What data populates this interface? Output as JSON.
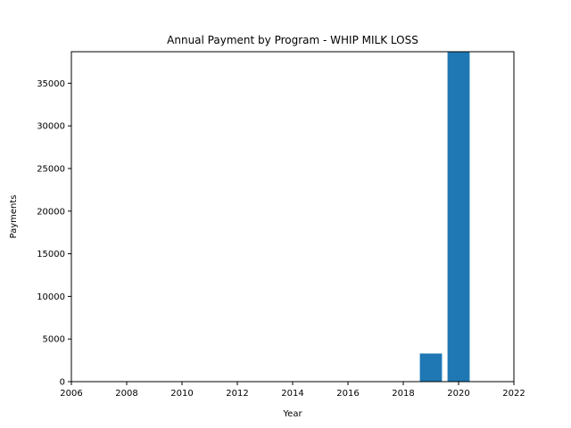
{
  "chart_data": {
    "type": "bar",
    "title": "Annual Payment by Program - WHIP MILK LOSS",
    "xlabel": "Year",
    "ylabel": "Payments",
    "x": [
      2019,
      2020
    ],
    "values": [
      3300,
      38700
    ],
    "bar_width_years": 0.8,
    "xlim": [
      2006,
      2022
    ],
    "ylim": [
      0,
      38700
    ],
    "xticks": [
      2006,
      2008,
      2010,
      2012,
      2014,
      2016,
      2018,
      2020,
      2022
    ],
    "yticks": [
      0,
      5000,
      10000,
      15000,
      20000,
      25000,
      30000,
      35000
    ],
    "bar_color": "#1f77b4",
    "grid": false,
    "legend": "none"
  }
}
